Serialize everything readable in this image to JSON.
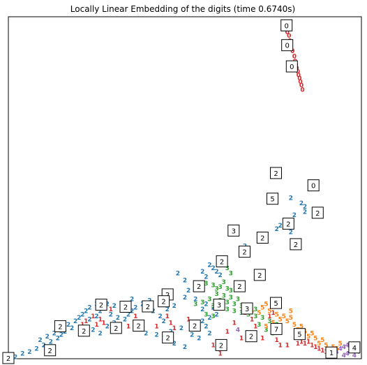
{
  "chart_data": {
    "type": "scatter",
    "title": "Locally Linear Embedding of the digits (time 0.6740s)",
    "xlabel": "",
    "ylabel": "",
    "xlim": [
      0,
      1
    ],
    "ylim": [
      0,
      1
    ],
    "grid": false,
    "axis_ticks": false,
    "series": [
      {
        "name": "0",
        "color": "#d62728",
        "points": [
          [
            0.785,
            0.985
          ],
          [
            0.79,
            0.97
          ],
          [
            0.79,
            0.955
          ],
          [
            0.795,
            0.945
          ],
          [
            0.797,
            0.93
          ],
          [
            0.8,
            0.915
          ],
          [
            0.805,
            0.9
          ],
          [
            0.81,
            0.885
          ],
          [
            0.812,
            0.87
          ],
          [
            0.815,
            0.86
          ],
          [
            0.817,
            0.85
          ],
          [
            0.82,
            0.84
          ],
          [
            0.822,
            0.83
          ],
          [
            0.825,
            0.82
          ],
          [
            0.827,
            0.81
          ],
          [
            0.83,
            0.8
          ],
          [
            0.833,
            0.787
          ]
        ]
      },
      {
        "name": "1",
        "color": "#d62728",
        "points": [
          [
            0.755,
            0.155
          ],
          [
            0.75,
            0.135
          ],
          [
            0.69,
            0.115
          ],
          [
            0.7,
            0.095
          ],
          [
            0.64,
            0.105
          ],
          [
            0.62,
            0.08
          ],
          [
            0.69,
            0.07
          ],
          [
            0.66,
            0.06
          ],
          [
            0.72,
            0.06
          ],
          [
            0.76,
            0.055
          ],
          [
            0.77,
            0.04
          ],
          [
            0.82,
            0.045
          ],
          [
            0.83,
            0.05
          ],
          [
            0.84,
            0.045
          ],
          [
            0.85,
            0.05
          ],
          [
            0.86,
            0.04
          ],
          [
            0.87,
            0.035
          ],
          [
            0.88,
            0.03
          ],
          [
            0.89,
            0.025
          ],
          [
            0.9,
            0.02
          ],
          [
            0.58,
            0.04
          ],
          [
            0.61,
            0.035
          ],
          [
            0.6,
            0.015
          ],
          [
            0.45,
            0.125
          ],
          [
            0.46,
            0.105
          ],
          [
            0.51,
            0.115
          ],
          [
            0.42,
            0.095
          ],
          [
            0.47,
            0.09
          ],
          [
            0.24,
            0.125
          ],
          [
            0.26,
            0.115
          ],
          [
            0.25,
            0.1
          ],
          [
            0.29,
            0.145
          ],
          [
            0.27,
            0.105
          ],
          [
            0.36,
            0.125
          ],
          [
            0.31,
            0.1
          ],
          [
            0.34,
            0.095
          ],
          [
            0.22,
            0.11
          ],
          [
            0.21,
            0.1
          ],
          [
            0.67,
            0.135
          ],
          [
            0.74,
            0.125
          ],
          [
            0.79,
            0.04
          ]
        ]
      },
      {
        "name": "2",
        "color": "#1f77b4",
        "points": [
          [
            0.8,
            0.47
          ],
          [
            0.83,
            0.455
          ],
          [
            0.84,
            0.445
          ],
          [
            0.84,
            0.43
          ],
          [
            0.81,
            0.42
          ],
          [
            0.77,
            0.39
          ],
          [
            0.79,
            0.405
          ],
          [
            0.76,
            0.38
          ],
          [
            0.8,
            0.37
          ],
          [
            0.71,
            0.35
          ],
          [
            0.66,
            0.32
          ],
          [
            0.67,
            0.33
          ],
          [
            0.48,
            0.25
          ],
          [
            0.57,
            0.275
          ],
          [
            0.58,
            0.265
          ],
          [
            0.59,
            0.255
          ],
          [
            0.6,
            0.245
          ],
          [
            0.55,
            0.255
          ],
          [
            0.56,
            0.24
          ],
          [
            0.5,
            0.23
          ],
          [
            0.53,
            0.22
          ],
          [
            0.54,
            0.205
          ],
          [
            0.51,
            0.2
          ],
          [
            0.5,
            0.18
          ],
          [
            0.53,
            0.175
          ],
          [
            0.56,
            0.16
          ],
          [
            0.58,
            0.15
          ],
          [
            0.55,
            0.145
          ],
          [
            0.59,
            0.13
          ],
          [
            0.57,
            0.12
          ],
          [
            0.55,
            0.11
          ],
          [
            0.52,
            0.1
          ],
          [
            0.56,
            0.095
          ],
          [
            0.57,
            0.075
          ],
          [
            0.49,
            0.09
          ],
          [
            0.46,
            0.08
          ],
          [
            0.44,
            0.11
          ],
          [
            0.43,
            0.125
          ],
          [
            0.45,
            0.145
          ],
          [
            0.47,
            0.155
          ],
          [
            0.41,
            0.14
          ],
          [
            0.4,
            0.155
          ],
          [
            0.4,
            0.17
          ],
          [
            0.38,
            0.16
          ],
          [
            0.36,
            0.15
          ],
          [
            0.35,
            0.14
          ],
          [
            0.34,
            0.13
          ],
          [
            0.32,
            0.145
          ],
          [
            0.3,
            0.155
          ],
          [
            0.28,
            0.16
          ],
          [
            0.27,
            0.15
          ],
          [
            0.26,
            0.14
          ],
          [
            0.29,
            0.13
          ],
          [
            0.31,
            0.12
          ],
          [
            0.3,
            0.105
          ],
          [
            0.33,
            0.115
          ],
          [
            0.25,
            0.16
          ],
          [
            0.23,
            0.15
          ],
          [
            0.22,
            0.14
          ],
          [
            0.21,
            0.13
          ],
          [
            0.2,
            0.12
          ],
          [
            0.19,
            0.11
          ],
          [
            0.17,
            0.1
          ],
          [
            0.18,
            0.09
          ],
          [
            0.16,
            0.08
          ],
          [
            0.15,
            0.07
          ],
          [
            0.14,
            0.06
          ],
          [
            0.12,
            0.05
          ],
          [
            0.1,
            0.04
          ],
          [
            0.08,
            0.03
          ],
          [
            0.06,
            0.02
          ],
          [
            0.04,
            0.015
          ],
          [
            0.02,
            0.005
          ],
          [
            0.11,
            0.065
          ],
          [
            0.13,
            0.075
          ],
          [
            0.09,
            0.055
          ],
          [
            0.24,
            0.085
          ],
          [
            0.26,
            0.075
          ],
          [
            0.28,
            0.095
          ],
          [
            0.37,
            0.105
          ],
          [
            0.38,
            0.09
          ],
          [
            0.39,
            0.075
          ],
          [
            0.42,
            0.07
          ],
          [
            0.44,
            0.06
          ],
          [
            0.47,
            0.045
          ],
          [
            0.5,
            0.035
          ],
          [
            0.23,
            0.115
          ],
          [
            0.25,
            0.125
          ],
          [
            0.33,
            0.16
          ],
          [
            0.35,
            0.175
          ],
          [
            0.44,
            0.18
          ],
          [
            0.46,
            0.195
          ],
          [
            0.52,
            0.07
          ],
          [
            0.54,
            0.06
          ]
        ]
      },
      {
        "name": "3",
        "color": "#2ca02c",
        "points": [
          [
            0.56,
            0.22
          ],
          [
            0.58,
            0.215
          ],
          [
            0.6,
            0.21
          ],
          [
            0.62,
            0.205
          ],
          [
            0.59,
            0.19
          ],
          [
            0.61,
            0.185
          ],
          [
            0.63,
            0.18
          ],
          [
            0.65,
            0.175
          ],
          [
            0.6,
            0.17
          ],
          [
            0.62,
            0.165
          ],
          [
            0.64,
            0.16
          ],
          [
            0.66,
            0.155
          ],
          [
            0.68,
            0.15
          ],
          [
            0.7,
            0.145
          ],
          [
            0.58,
            0.155
          ],
          [
            0.6,
            0.15
          ],
          [
            0.62,
            0.145
          ],
          [
            0.64,
            0.14
          ],
          [
            0.66,
            0.135
          ],
          [
            0.68,
            0.13
          ],
          [
            0.7,
            0.125
          ],
          [
            0.72,
            0.12
          ],
          [
            0.57,
            0.175
          ],
          [
            0.59,
            0.205
          ],
          [
            0.61,
            0.225
          ],
          [
            0.63,
            0.2
          ],
          [
            0.55,
            0.165
          ],
          [
            0.53,
            0.16
          ],
          [
            0.56,
            0.13
          ],
          [
            0.58,
            0.125
          ],
          [
            0.74,
            0.11
          ],
          [
            0.76,
            0.1
          ],
          [
            0.71,
            0.1
          ],
          [
            0.73,
            0.085
          ],
          [
            0.75,
            0.075
          ],
          [
            0.62,
            0.265
          ],
          [
            0.63,
            0.25
          ]
        ]
      },
      {
        "name": "4",
        "color": "#9467bd",
        "points": [
          [
            0.94,
            0.03
          ],
          [
            0.95,
            0.035
          ],
          [
            0.96,
            0.04
          ],
          [
            0.97,
            0.025
          ],
          [
            0.98,
            0.03
          ],
          [
            0.99,
            0.02
          ],
          [
            0.96,
            0.015
          ],
          [
            0.93,
            0.02
          ],
          [
            0.95,
            0.01
          ],
          [
            0.98,
            0.01
          ],
          [
            0.65,
            0.085
          ]
        ]
      },
      {
        "name": "5",
        "color": "#ff7f0e",
        "points": [
          [
            0.72,
            0.15
          ],
          [
            0.74,
            0.14
          ],
          [
            0.76,
            0.13
          ],
          [
            0.78,
            0.125
          ],
          [
            0.8,
            0.12
          ],
          [
            0.79,
            0.11
          ],
          [
            0.81,
            0.1
          ],
          [
            0.83,
            0.095
          ],
          [
            0.82,
            0.085
          ],
          [
            0.84,
            0.08
          ],
          [
            0.86,
            0.075
          ],
          [
            0.85,
            0.065
          ],
          [
            0.87,
            0.06
          ],
          [
            0.89,
            0.055
          ],
          [
            0.88,
            0.045
          ],
          [
            0.9,
            0.04
          ],
          [
            0.92,
            0.035
          ],
          [
            0.91,
            0.025
          ],
          [
            0.93,
            0.03
          ],
          [
            0.94,
            0.045
          ],
          [
            0.77,
            0.115
          ],
          [
            0.75,
            0.105
          ],
          [
            0.73,
            0.095
          ],
          [
            0.71,
            0.135
          ],
          [
            0.69,
            0.14
          ],
          [
            0.73,
            0.16
          ],
          [
            0.8,
            0.14
          ]
        ]
      }
    ],
    "thumbnails": [
      {
        "label": "0",
        "x": 0.788,
        "y": 0.975
      },
      {
        "label": "0",
        "x": 0.79,
        "y": 0.917
      },
      {
        "label": "0",
        "x": 0.803,
        "y": 0.855
      },
      {
        "label": "0",
        "x": 0.864,
        "y": 0.507
      },
      {
        "label": "2",
        "x": 0.758,
        "y": 0.543
      },
      {
        "label": "5",
        "x": 0.748,
        "y": 0.468
      },
      {
        "label": "2",
        "x": 0.876,
        "y": 0.427
      },
      {
        "label": "2",
        "x": 0.793,
        "y": 0.395
      },
      {
        "label": "3",
        "x": 0.638,
        "y": 0.375
      },
      {
        "label": "2",
        "x": 0.72,
        "y": 0.354
      },
      {
        "label": "2",
        "x": 0.814,
        "y": 0.335
      },
      {
        "label": "2",
        "x": 0.669,
        "y": 0.313
      },
      {
        "label": "2",
        "x": 0.605,
        "y": 0.285
      },
      {
        "label": "2",
        "x": 0.712,
        "y": 0.245
      },
      {
        "label": "2",
        "x": 0.54,
        "y": 0.212
      },
      {
        "label": "2",
        "x": 0.655,
        "y": 0.212
      },
      {
        "label": "2",
        "x": 0.451,
        "y": 0.188
      },
      {
        "label": "5",
        "x": 0.758,
        "y": 0.163
      },
      {
        "label": "2",
        "x": 0.263,
        "y": 0.158
      },
      {
        "label": "2",
        "x": 0.332,
        "y": 0.152
      },
      {
        "label": "2",
        "x": 0.395,
        "y": 0.153
      },
      {
        "label": "2",
        "x": 0.44,
        "y": 0.168
      },
      {
        "label": "3",
        "x": 0.597,
        "y": 0.158
      },
      {
        "label": "3",
        "x": 0.676,
        "y": 0.147
      },
      {
        "label": "2",
        "x": 0.147,
        "y": 0.095
      },
      {
        "label": "2",
        "x": 0.214,
        "y": 0.082
      },
      {
        "label": "2",
        "x": 0.305,
        "y": 0.09
      },
      {
        "label": "2",
        "x": 0.369,
        "y": 0.097
      },
      {
        "label": "2",
        "x": 0.528,
        "y": 0.097
      },
      {
        "label": "2",
        "x": 0.452,
        "y": 0.062
      },
      {
        "label": "7",
        "x": 0.759,
        "y": 0.087
      },
      {
        "label": "2",
        "x": 0.688,
        "y": 0.066
      },
      {
        "label": "5",
        "x": 0.825,
        "y": 0.072
      },
      {
        "label": "2",
        "x": 0.603,
        "y": 0.04
      },
      {
        "label": "2",
        "x": 0.118,
        "y": 0.025
      },
      {
        "label": "1",
        "x": 0.915,
        "y": 0.018
      },
      {
        "label": "4",
        "x": 0.98,
        "y": 0.033
      },
      {
        "label": "2",
        "x": 0.0,
        "y": 0.0
      }
    ]
  }
}
